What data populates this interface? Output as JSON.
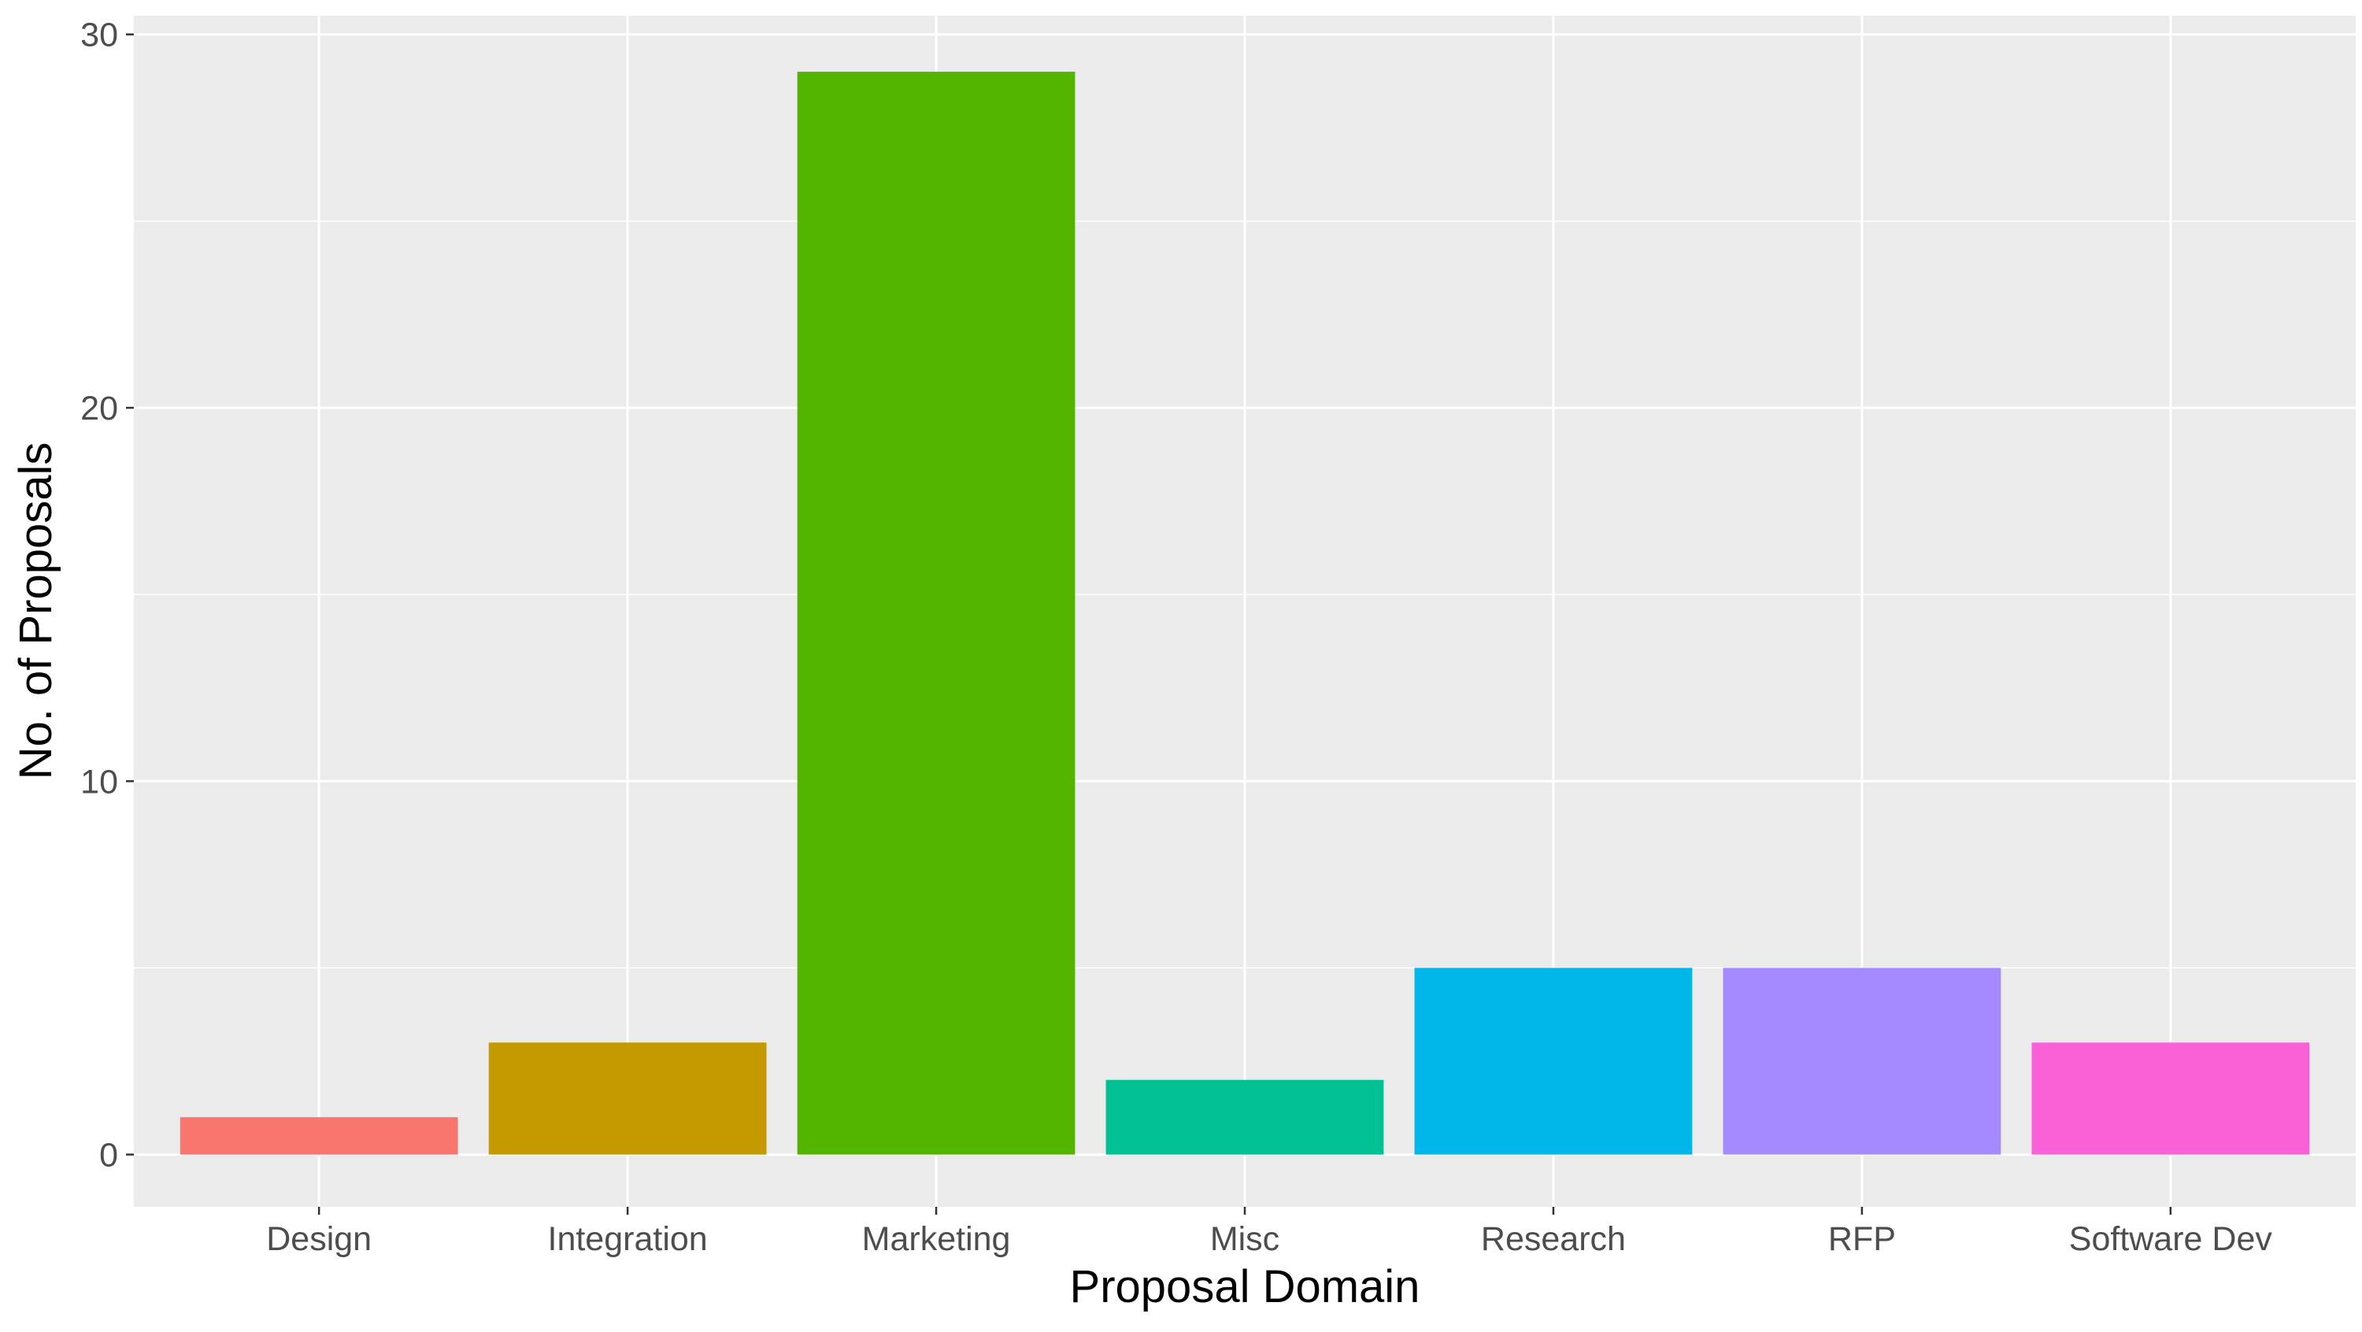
{
  "chart_data": {
    "type": "bar",
    "title": "",
    "xlabel": "Proposal Domain",
    "ylabel": "No. of Proposals",
    "categories": [
      "Design",
      "Integration",
      "Marketing",
      "Misc",
      "Research",
      "RFP",
      "Software Dev"
    ],
    "values": [
      1,
      3,
      29,
      2,
      5,
      5,
      3
    ],
    "colors": [
      "#F8766D",
      "#C49A00",
      "#53B400",
      "#00C094",
      "#00B6EB",
      "#A58AFF",
      "#FB61D7"
    ],
    "ylim": [
      -1.4,
      30.5
    ],
    "yticks": [
      0,
      10,
      20,
      30
    ],
    "yticks_labels": [
      "0",
      "10",
      "20",
      "30"
    ],
    "grid": true,
    "legend": "none",
    "panel_background": "#EBEBEB",
    "gridline_color": "#FFFFFF"
  }
}
